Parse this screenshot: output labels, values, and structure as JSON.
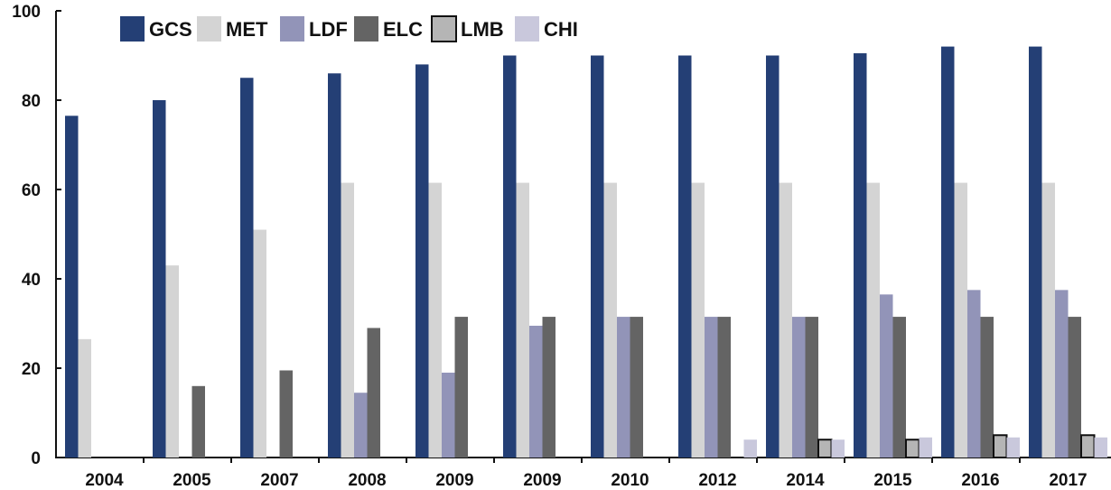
{
  "chart_data": {
    "type": "bar",
    "title": "",
    "xlabel": "",
    "ylabel": "",
    "ylim": [
      0,
      100
    ],
    "yticks": [
      0,
      20,
      40,
      60,
      80,
      100
    ],
    "ytick_labels": [
      "0",
      "20",
      "40",
      "60",
      "80",
      "100"
    ],
    "grid": false,
    "legend_position": "top-left",
    "categories": [
      "2004",
      "2005",
      "2007",
      "2008",
      "2009",
      "2009",
      "2010",
      "2012",
      "2014",
      "2015",
      "2016",
      "2017"
    ],
    "series": [
      {
        "name": "GCS",
        "color": "#243f75",
        "outline": false,
        "values": [
          76.5,
          80.0,
          85.0,
          86.0,
          88.0,
          90.0,
          90.0,
          90.0,
          90.0,
          90.5,
          92.0,
          92.0
        ]
      },
      {
        "name": "MET",
        "color": "#d4d4d4",
        "outline": false,
        "values": [
          26.5,
          43.0,
          51.0,
          61.5,
          61.5,
          61.5,
          61.5,
          61.5,
          61.5,
          61.5,
          61.5,
          61.5
        ]
      },
      {
        "name": "LDF",
        "color": "#9294b8",
        "outline": false,
        "values": [
          0,
          0,
          0,
          14.5,
          19.0,
          29.5,
          31.5,
          31.5,
          31.5,
          36.5,
          37.5,
          37.5
        ]
      },
      {
        "name": "ELC",
        "color": "#646464",
        "outline": false,
        "values": [
          0,
          16.0,
          19.5,
          29.0,
          31.5,
          31.5,
          31.5,
          31.5,
          31.5,
          31.5,
          31.5,
          31.5
        ]
      },
      {
        "name": "LMB",
        "color": "#b5b5b5",
        "outline": true,
        "values": [
          0,
          0,
          0,
          0,
          0,
          0,
          0,
          0,
          4.0,
          4.0,
          5.0,
          5.0
        ]
      },
      {
        "name": "CHI",
        "color": "#c9c8dc",
        "outline": false,
        "values": [
          0,
          0,
          0,
          0,
          0,
          0,
          0,
          4.0,
          4.0,
          4.5,
          4.5,
          4.5
        ]
      }
    ]
  }
}
